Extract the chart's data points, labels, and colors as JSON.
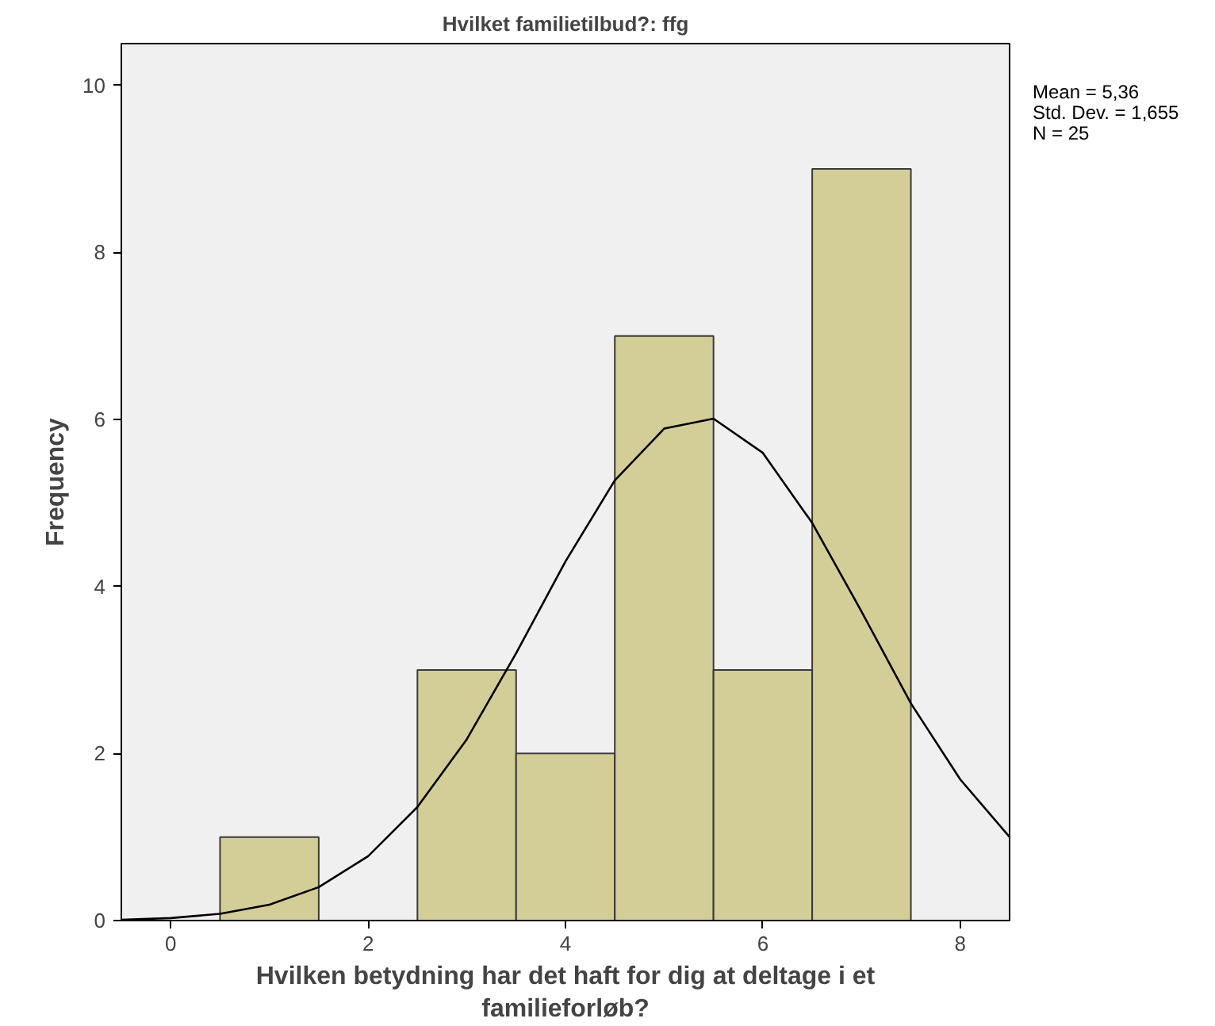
{
  "chart_data": {
    "type": "histogram",
    "title": "Hvilket familietilbud?: ffg",
    "xlabel": "Hvilken betydning har det haft for dig at deltage i et\nfamilieforløb?",
    "ylabel": "Frequency",
    "bins": [
      0.5,
      1.5,
      2.5,
      3.5,
      4.5,
      5.5,
      6.5,
      7.5
    ],
    "values": [
      1,
      0,
      3,
      2,
      7,
      3,
      9
    ],
    "color": "#d3ce97",
    "series": [
      {
        "type": "line",
        "color": "#000000",
        "x": [
          -0.5,
          0,
          0.5,
          1,
          1.5,
          2,
          2.5,
          3,
          3.5,
          4,
          4.5,
          5,
          5.5,
          6,
          6.5,
          7,
          7.5,
          8,
          8.5
        ],
        "values": [
          0.01,
          0.03,
          0.08,
          0.19,
          0.4,
          0.77,
          1.36,
          2.17,
          3.2,
          4.3,
          5.27,
          5.89,
          6.01,
          5.6,
          4.76,
          3.7,
          2.6,
          1.69,
          1.0
        ]
      }
    ],
    "xlim": [
      -0.5,
      8.5
    ],
    "ylim": [
      0,
      10.5
    ],
    "xticks": [
      0,
      2,
      4,
      6,
      8
    ],
    "yticks": [
      0,
      2,
      4,
      6,
      8,
      10
    ],
    "grid": false,
    "annotations": [
      "Mean = 5,36",
      "Std. Dev. = 1,655",
      "N = 25"
    ]
  }
}
